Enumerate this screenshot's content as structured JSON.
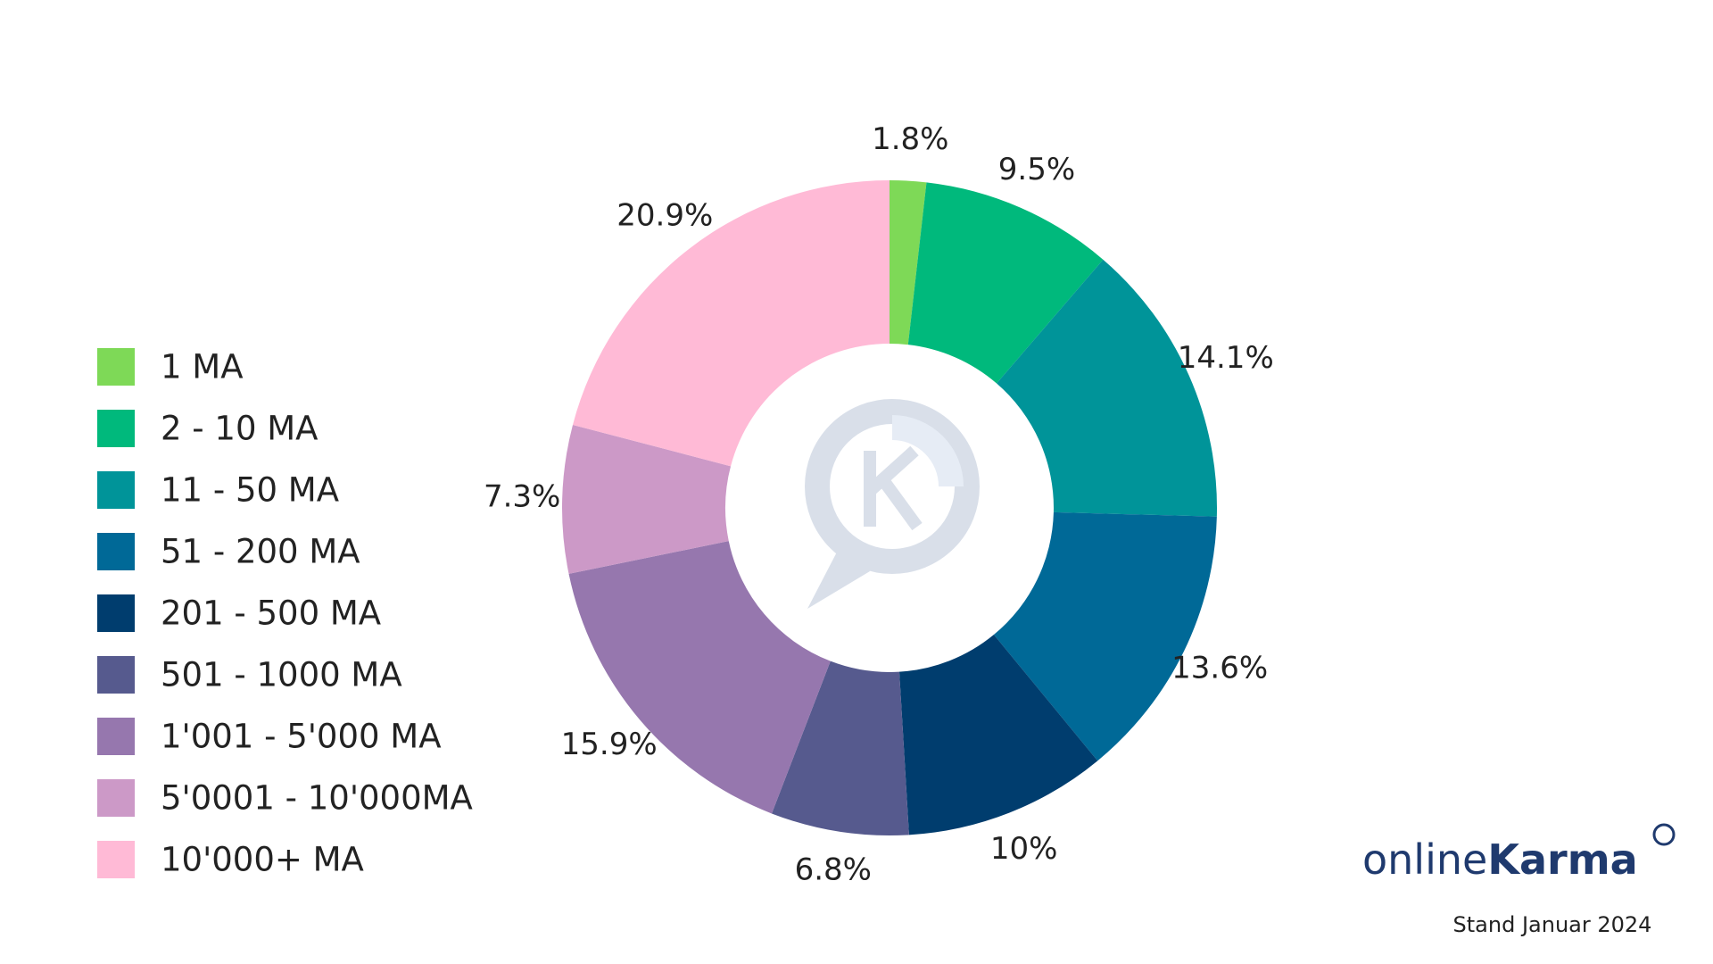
{
  "chart_data": {
    "type": "donut",
    "categories": [
      "1 MA",
      "2 - 10 MA",
      "11 - 50 MA",
      "51 - 200 MA",
      "201 - 500 MA",
      "501 - 1000 MA",
      "1'001 - 5'000 MA",
      "5'0001 - 10'000MA",
      "10'000+ MA"
    ],
    "values": [
      1.8,
      9.5,
      14.1,
      13.6,
      10,
      6.8,
      15.9,
      7.3,
      20.9
    ],
    "value_labels": [
      "1.8%",
      "9.5%",
      "14.1%",
      "13.6%",
      "10%",
      "6.8%",
      "15.9%",
      "7.3%",
      "20.9%"
    ],
    "colors": [
      "#7ed957",
      "#00b97c",
      "#009499",
      "#006997",
      "#003d6e",
      "#565a8e",
      "#9677ae",
      "#cc99c7",
      "#ffbad6"
    ],
    "legend": "left",
    "logo_text": [
      "online",
      "Karma"
    ],
    "footnote": "Stand Januar 2024"
  }
}
